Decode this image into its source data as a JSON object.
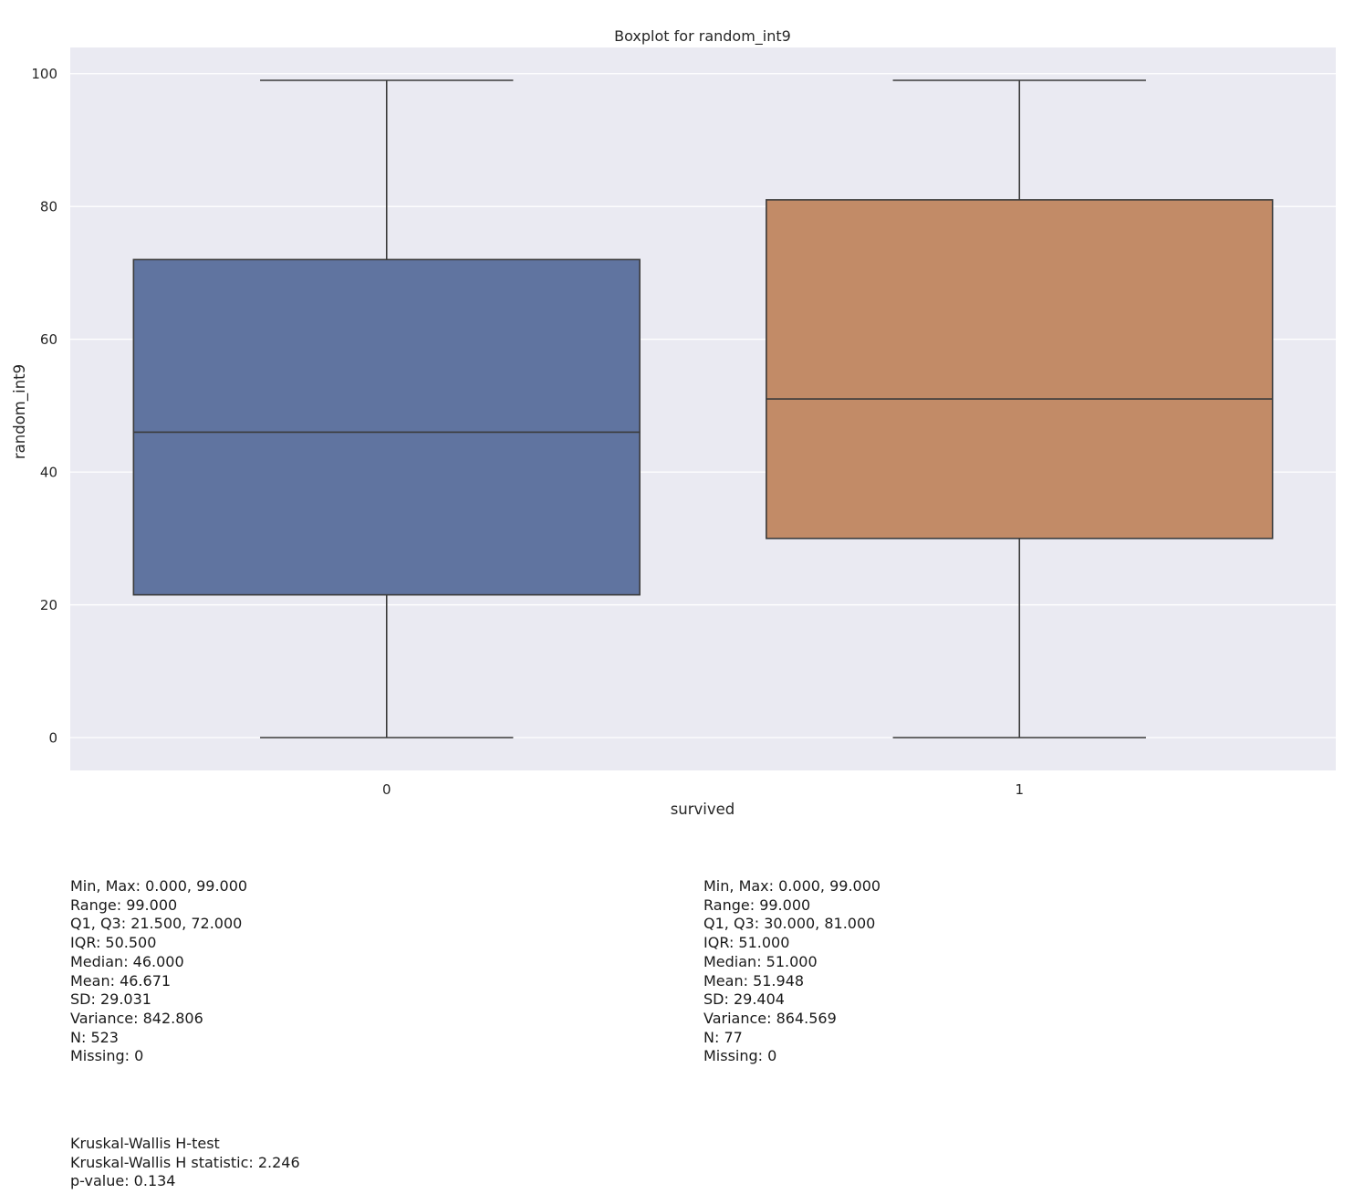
{
  "chart_data": {
    "type": "box",
    "title": "Boxplot for random_int9",
    "xlabel": "survived",
    "ylabel": "random_int9",
    "ylim": [
      -4.95,
      103.95
    ],
    "yticks": [
      0,
      20,
      40,
      60,
      80,
      100
    ],
    "grid": true,
    "categories": [
      "0",
      "1"
    ],
    "colors": [
      "#6074a0",
      "#c28b67"
    ],
    "background": "#eaeaf2",
    "boxes": [
      {
        "category": "0",
        "whisker_low": 0,
        "q1": 21.5,
        "median": 46,
        "q3": 72,
        "whisker_high": 99
      },
      {
        "category": "1",
        "whisker_low": 0,
        "q1": 30,
        "median": 51,
        "q3": 81,
        "whisker_high": 99
      }
    ]
  },
  "stats": [
    {
      "group": "0",
      "lines": [
        "Min, Max: 0.000, 99.000",
        "Range: 99.000",
        "Q1, Q3: 21.500, 72.000",
        "IQR: 50.500",
        "Median: 46.000",
        "Mean: 46.671",
        "SD: 29.031",
        "Variance: 842.806",
        "N: 523",
        "Missing: 0"
      ]
    },
    {
      "group": "1",
      "lines": [
        "Min, Max: 0.000, 99.000",
        "Range: 99.000",
        "Q1, Q3: 30.000, 81.000",
        "IQR: 51.000",
        "Median: 51.000",
        "Mean: 51.948",
        "SD: 29.404",
        "Variance: 864.569",
        "N: 77",
        "Missing: 0"
      ]
    }
  ],
  "test": {
    "lines": [
      "Kruskal-Wallis H-test",
      "Kruskal-Wallis H statistic: 2.246",
      "p-value: 0.134"
    ]
  }
}
